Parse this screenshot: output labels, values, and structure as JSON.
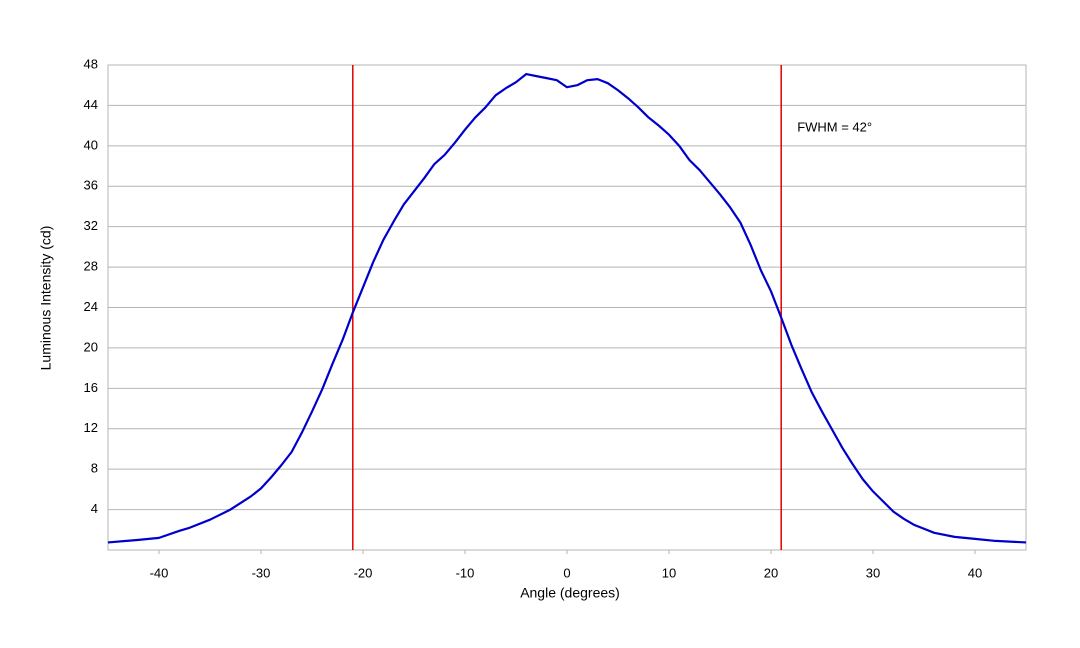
{
  "chart_data": {
    "type": "line",
    "x_label": "Angle (degrees)",
    "y_label": "Luminous Intensity (cd)",
    "x": [
      -45,
      -42,
      -40,
      -38,
      -37,
      -35,
      -33,
      -31,
      -30,
      -29,
      -28,
      -27,
      -26,
      -25,
      -24,
      -23,
      -22,
      -21,
      -20,
      -19,
      -18,
      -17,
      -16,
      -15,
      -14,
      -13,
      -12,
      -11,
      -10,
      -9,
      -8,
      -7,
      -6,
      -5,
      -4,
      -3,
      -2,
      -1,
      0,
      1,
      2,
      3,
      4,
      5,
      6,
      7,
      8,
      9,
      10,
      11,
      12,
      13,
      14,
      15,
      16,
      17,
      18,
      19,
      20,
      21,
      22,
      23,
      24,
      25,
      26,
      27,
      28,
      29,
      30,
      31,
      32,
      33,
      34,
      35,
      36,
      38,
      40,
      42,
      45
    ],
    "series": [
      {
        "color": "#0000cc",
        "values": [
          0.75,
          1.0,
          1.2,
          1.9,
          2.2,
          3.0,
          4.0,
          5.3,
          6.1,
          7.2,
          8.4,
          9.7,
          11.6,
          13.7,
          15.9,
          18.4,
          20.8,
          23.5,
          26.0,
          28.5,
          30.7,
          32.5,
          34.2,
          35.5,
          36.8,
          38.2,
          39.1,
          40.3,
          41.6,
          42.8,
          43.8,
          45.0,
          45.7,
          46.3,
          47.1,
          46.9,
          46.7,
          46.5,
          45.8,
          46.0,
          46.5,
          46.6,
          46.2,
          45.5,
          44.7,
          43.8,
          42.8,
          42.0,
          41.1,
          40.0,
          38.6,
          37.6,
          36.4,
          35.2,
          33.9,
          32.4,
          30.2,
          27.7,
          25.6,
          23.0,
          20.3,
          17.9,
          15.6,
          13.7,
          11.9,
          10.1,
          8.5,
          7.0,
          5.8,
          4.8,
          3.8,
          3.1,
          2.5,
          2.1,
          1.7,
          1.3,
          1.1,
          0.9,
          0.75
        ]
      }
    ],
    "vlines": [
      {
        "x": -21,
        "color": "#e00000"
      },
      {
        "x": 21,
        "color": "#e00000"
      }
    ],
    "annotation": "FWHM = 42°",
    "xlim": [
      -45,
      45
    ],
    "xticks": [
      -40,
      -30,
      -20,
      -10,
      0,
      10,
      20,
      30,
      40
    ],
    "ylim": [
      0,
      48
    ],
    "yticks": [
      4,
      8,
      12,
      16,
      20,
      24,
      28,
      32,
      36,
      40,
      44,
      48
    ],
    "grid": true
  }
}
